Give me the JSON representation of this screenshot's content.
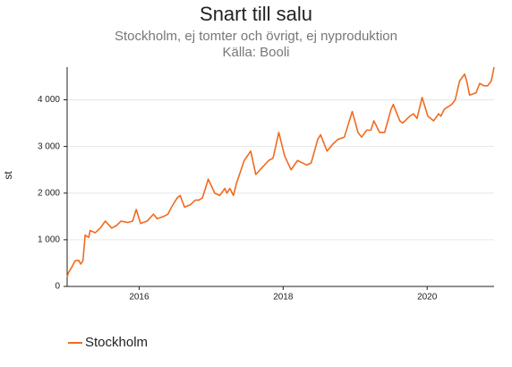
{
  "chart_data": {
    "type": "line",
    "title": "Snart till salu",
    "subtitle": "Stockholm, ej tomter och övrigt, ej nyproduktion",
    "source": "Källa: Booli",
    "ylabel": "st",
    "x": [
      2015.0,
      2015.02,
      2015.06,
      2015.11,
      2015.16,
      2015.19,
      2015.22,
      2015.25,
      2015.3,
      2015.32,
      2015.39,
      2015.46,
      2015.53,
      2015.62,
      2015.68,
      2015.75,
      2015.84,
      2015.91,
      2015.96,
      2016.02,
      2016.11,
      2016.2,
      2016.25,
      2016.34,
      2016.4,
      2016.45,
      2016.53,
      2016.57,
      2016.63,
      2016.71,
      2016.78,
      2016.83,
      2016.88,
      2016.96,
      2017.05,
      2017.12,
      2017.19,
      2017.22,
      2017.26,
      2017.31,
      2017.35,
      2017.46,
      2017.55,
      2017.62,
      2017.71,
      2017.8,
      2017.86,
      2017.94,
      2018.02,
      2018.11,
      2018.2,
      2018.33,
      2018.39,
      2018.48,
      2018.52,
      2018.61,
      2018.69,
      2018.76,
      2018.85,
      2018.96,
      2019.04,
      2019.09,
      2019.16,
      2019.22,
      2019.26,
      2019.34,
      2019.41,
      2019.5,
      2019.53,
      2019.62,
      2019.66,
      2019.76,
      2019.81,
      2019.86,
      2019.93,
      2020.01,
      2020.09,
      2020.16,
      2020.19,
      2020.24,
      2020.34,
      2020.39,
      2020.45,
      2020.52,
      2020.55,
      2020.59,
      2020.68,
      2020.73,
      2020.79,
      2020.84,
      2020.89,
      2020.93
    ],
    "series": [
      {
        "name": "Stockholm",
        "color": "#f06b1e",
        "values": [
          200,
          300,
          400,
          550,
          560,
          480,
          550,
          1100,
          1050,
          1200,
          1150,
          1250,
          1400,
          1250,
          1300,
          1400,
          1370,
          1400,
          1650,
          1350,
          1400,
          1550,
          1450,
          1500,
          1550,
          1700,
          1900,
          1950,
          1700,
          1750,
          1850,
          1850,
          1900,
          2300,
          2000,
          1950,
          2100,
          2000,
          2100,
          1950,
          2200,
          2700,
          2900,
          2400,
          2550,
          2700,
          2750,
          3300,
          2800,
          2500,
          2700,
          2600,
          2650,
          3150,
          3250,
          2900,
          3050,
          3150,
          3200,
          3750,
          3300,
          3200,
          3350,
          3350,
          3550,
          3300,
          3300,
          3800,
          3900,
          3550,
          3500,
          3650,
          3700,
          3600,
          4050,
          3650,
          3550,
          3700,
          3650,
          3800,
          3900,
          4000,
          4400,
          4550,
          4400,
          4100,
          4150,
          4350,
          4300,
          4300,
          4400,
          4700
        ]
      }
    ],
    "xlim": [
      2015,
      2020.93
    ],
    "xticks": [
      2016,
      2018,
      2020
    ],
    "ylim": [
      0,
      4700
    ],
    "yticks": [
      0,
      {
        "value": 1000,
        "label": "1 000"
      },
      {
        "value": 2000,
        "label": "2 000"
      },
      {
        "value": 3000,
        "label": "3 000"
      },
      {
        "value": 4000,
        "label": "4 000"
      }
    ],
    "grid": true
  }
}
